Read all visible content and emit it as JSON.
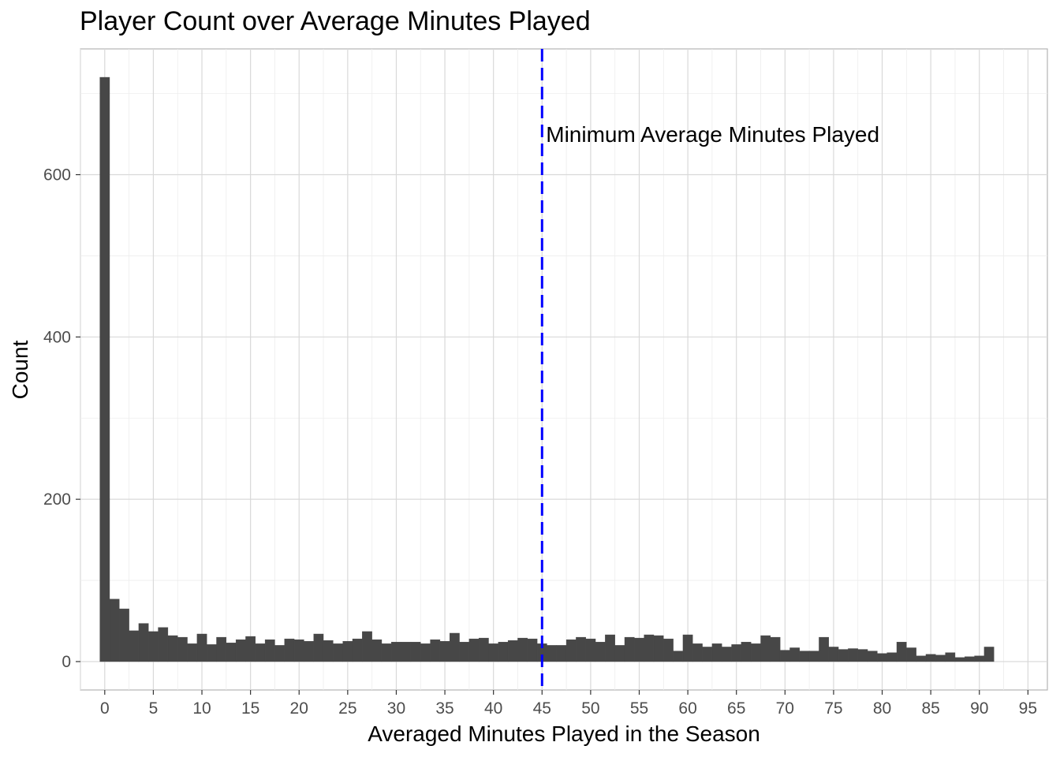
{
  "chart_data": {
    "type": "bar",
    "title": "Player Count over Average Minutes Played",
    "xlabel": "Averaged Minutes Played in the Season",
    "ylabel": "Count",
    "xlim": [
      -2.5,
      97
    ],
    "ylim": [
      -35,
      755
    ],
    "x_ticks": [
      0,
      5,
      10,
      15,
      20,
      25,
      30,
      35,
      40,
      45,
      50,
      55,
      60,
      65,
      70,
      75,
      80,
      85,
      90,
      95
    ],
    "y_ticks": [
      0,
      200,
      400,
      600
    ],
    "grid": true,
    "bin_start": -0.5,
    "bin_width": 1,
    "values": [
      720,
      77,
      65,
      38,
      47,
      37,
      42,
      32,
      30,
      22,
      34,
      21,
      30,
      23,
      27,
      31,
      22,
      27,
      20,
      28,
      27,
      25,
      34,
      26,
      22,
      25,
      28,
      37,
      27,
      22,
      24,
      24,
      24,
      22,
      27,
      25,
      35,
      24,
      28,
      29,
      22,
      24,
      26,
      29,
      28,
      22,
      20,
      20,
      27,
      30,
      28,
      24,
      33,
      20,
      30,
      29,
      33,
      32,
      28,
      13,
      33,
      22,
      18,
      22,
      18,
      21,
      24,
      22,
      32,
      30,
      14,
      17,
      13,
      13,
      30,
      18,
      15,
      16,
      15,
      13,
      10,
      11,
      24,
      17,
      7,
      9,
      8,
      11,
      5,
      6,
      7,
      18
    ],
    "reference_line": {
      "x": 45,
      "color": "#0000ff",
      "style": "dashed",
      "label": "Minimum Average Minutes Played"
    },
    "bar_color": "#474747"
  }
}
